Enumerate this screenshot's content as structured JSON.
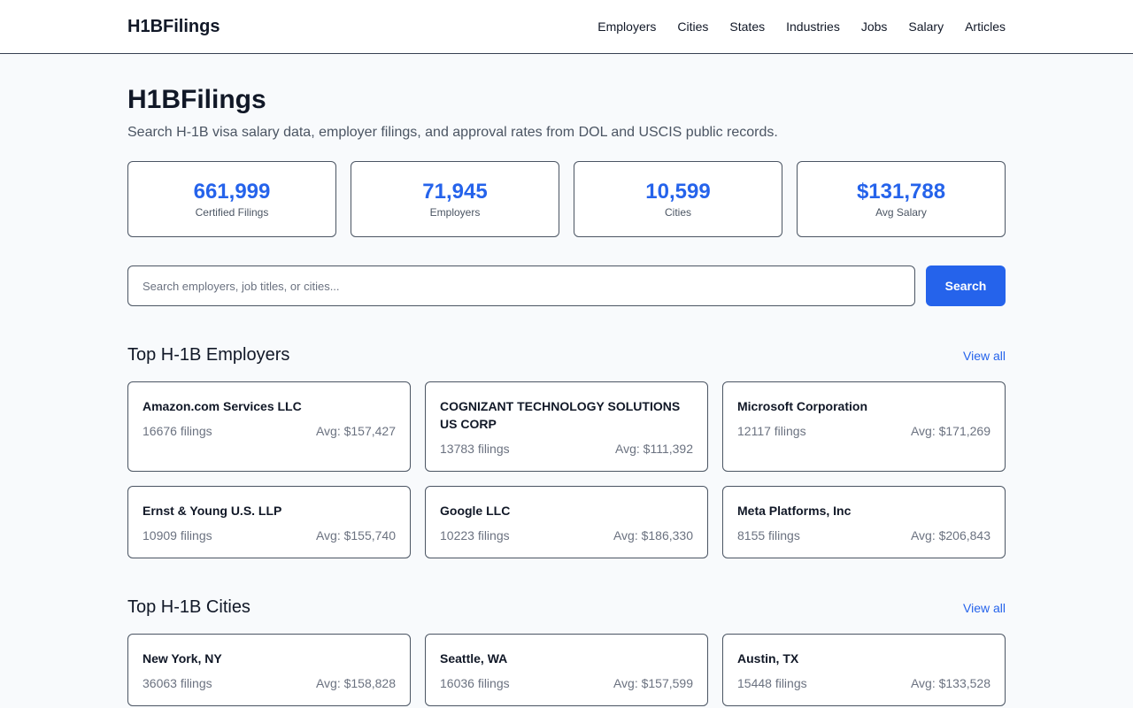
{
  "header": {
    "brand": "H1BFilings",
    "nav": [
      "Employers",
      "Cities",
      "States",
      "Industries",
      "Jobs",
      "Salary",
      "Articles"
    ]
  },
  "hero": {
    "title": "H1BFilings",
    "subtitle": "Search H-1B visa salary data, employer filings, and approval rates from DOL and USCIS public records."
  },
  "stats": [
    {
      "value": "661,999",
      "label": "Certified Filings"
    },
    {
      "value": "71,945",
      "label": "Employers"
    },
    {
      "value": "10,599",
      "label": "Cities"
    },
    {
      "value": "$131,788",
      "label": "Avg Salary"
    }
  ],
  "search": {
    "placeholder": "Search employers, job titles, or cities...",
    "value": "",
    "button_label": "Search"
  },
  "employers": {
    "title": "Top H-1B Employers",
    "view_all": "View all",
    "items": [
      {
        "name": "Amazon.com Services LLC",
        "filings": "16676 filings",
        "avg": "Avg: $157,427"
      },
      {
        "name": "COGNIZANT TECHNOLOGY SOLUTIONS US CORP",
        "filings": "13783 filings",
        "avg": "Avg: $111,392"
      },
      {
        "name": "Microsoft Corporation",
        "filings": "12117 filings",
        "avg": "Avg: $171,269"
      },
      {
        "name": "Ernst & Young U.S. LLP",
        "filings": "10909 filings",
        "avg": "Avg: $155,740"
      },
      {
        "name": "Google LLC",
        "filings": "10223 filings",
        "avg": "Avg: $186,330"
      },
      {
        "name": "Meta Platforms, Inc",
        "filings": "8155 filings",
        "avg": "Avg: $206,843"
      }
    ]
  },
  "cities": {
    "title": "Top H-1B Cities",
    "view_all": "View all",
    "items": [
      {
        "name": "New York, NY",
        "filings": "36063 filings",
        "avg": "Avg: $158,828"
      },
      {
        "name": "Seattle, WA",
        "filings": "16036 filings",
        "avg": "Avg: $157,599"
      },
      {
        "name": "Austin, TX",
        "filings": "15448 filings",
        "avg": "Avg: $133,528"
      }
    ]
  },
  "colors": {
    "accent": "#2563eb",
    "background": "#f8fafc",
    "text": "#111827",
    "muted": "#6b7280"
  }
}
